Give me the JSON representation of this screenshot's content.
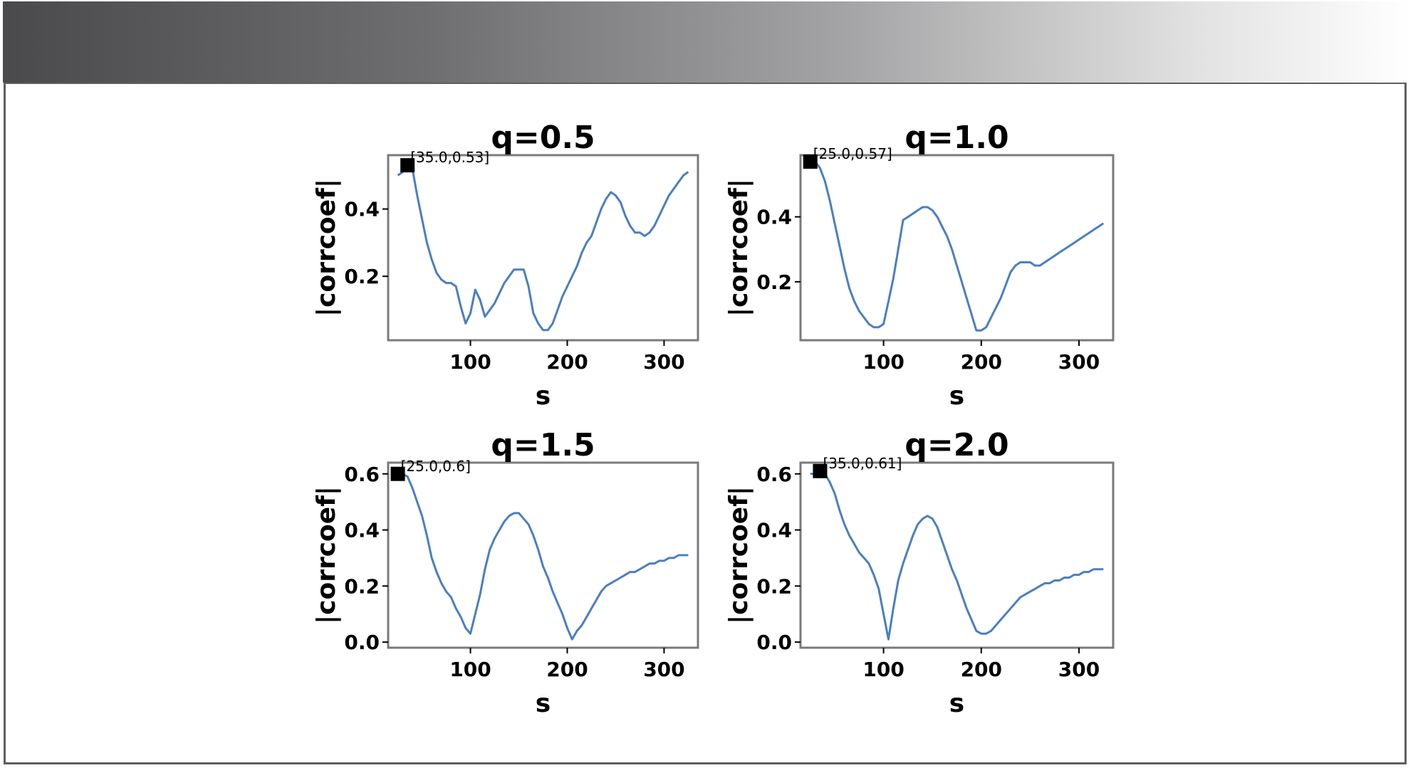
{
  "chart_data": [
    {
      "type": "line",
      "title": "q=0.5",
      "xlabel": "s",
      "ylabel": "|corrcoef|",
      "xlim": [
        15,
        335
      ],
      "ylim": [
        0.01,
        0.56
      ],
      "xticks": [
        100,
        200,
        300
      ],
      "yticks": [
        0.2,
        0.4
      ],
      "ytick_labels": [
        "0.2",
        "0.4"
      ],
      "marker": {
        "x": 35.0,
        "y": 0.53,
        "label": "[35.0,0.53]"
      },
      "series": [
        {
          "color": "#4a7fc1",
          "x": [
            25,
            30,
            35,
            40,
            45,
            50,
            55,
            60,
            65,
            70,
            75,
            80,
            85,
            90,
            95,
            100,
            105,
            110,
            115,
            120,
            125,
            130,
            135,
            140,
            145,
            150,
            155,
            160,
            165,
            170,
            175,
            180,
            185,
            190,
            195,
            200,
            205,
            210,
            215,
            220,
            225,
            230,
            235,
            240,
            245,
            250,
            255,
            260,
            265,
            270,
            275,
            280,
            285,
            290,
            295,
            300,
            305,
            310,
            315,
            320,
            325
          ],
          "values": [
            0.5,
            0.51,
            0.53,
            0.52,
            0.44,
            0.37,
            0.3,
            0.25,
            0.21,
            0.19,
            0.18,
            0.18,
            0.17,
            0.11,
            0.06,
            0.09,
            0.16,
            0.13,
            0.08,
            0.1,
            0.12,
            0.15,
            0.18,
            0.2,
            0.22,
            0.22,
            0.22,
            0.17,
            0.09,
            0.06,
            0.04,
            0.04,
            0.06,
            0.1,
            0.14,
            0.17,
            0.2,
            0.23,
            0.27,
            0.3,
            0.32,
            0.36,
            0.4,
            0.43,
            0.45,
            0.44,
            0.42,
            0.38,
            0.35,
            0.33,
            0.33,
            0.32,
            0.33,
            0.35,
            0.38,
            0.41,
            0.44,
            0.46,
            0.48,
            0.5,
            0.51
          ]
        }
      ]
    },
    {
      "type": "line",
      "title": "q=1.0",
      "xlabel": "s",
      "ylabel": "|corrcoef|",
      "xlim": [
        15,
        335
      ],
      "ylim": [
        0.02,
        0.59
      ],
      "xticks": [
        100,
        200,
        300
      ],
      "yticks": [
        0.2,
        0.4
      ],
      "ytick_labels": [
        "0.2",
        "0.4"
      ],
      "marker": {
        "x": 25.0,
        "y": 0.57,
        "label": "[25.0,0.57]"
      },
      "series": [
        {
          "color": "#4a7fc1",
          "x": [
            25,
            30,
            35,
            40,
            45,
            50,
            55,
            60,
            65,
            70,
            75,
            80,
            85,
            90,
            95,
            100,
            105,
            110,
            115,
            120,
            125,
            130,
            135,
            140,
            145,
            150,
            155,
            160,
            165,
            170,
            175,
            180,
            185,
            190,
            195,
            200,
            205,
            210,
            215,
            220,
            225,
            230,
            235,
            240,
            245,
            250,
            255,
            260,
            265,
            270,
            275,
            280,
            285,
            290,
            295,
            300,
            305,
            310,
            315,
            320,
            325
          ],
          "values": [
            0.57,
            0.57,
            0.55,
            0.51,
            0.45,
            0.38,
            0.31,
            0.24,
            0.18,
            0.14,
            0.11,
            0.09,
            0.07,
            0.06,
            0.06,
            0.07,
            0.14,
            0.21,
            0.3,
            0.39,
            0.4,
            0.41,
            0.42,
            0.43,
            0.43,
            0.42,
            0.4,
            0.37,
            0.34,
            0.3,
            0.25,
            0.2,
            0.15,
            0.1,
            0.05,
            0.05,
            0.06,
            0.09,
            0.12,
            0.15,
            0.19,
            0.23,
            0.25,
            0.26,
            0.26,
            0.26,
            0.25,
            0.25,
            0.26,
            0.27,
            0.28,
            0.29,
            0.3,
            0.31,
            0.32,
            0.33,
            0.34,
            0.35,
            0.36,
            0.37,
            0.38
          ]
        }
      ]
    },
    {
      "type": "line",
      "title": "q=1.5",
      "xlabel": "s",
      "ylabel": "|corrcoef|",
      "xlim": [
        15,
        335
      ],
      "ylim": [
        -0.02,
        0.64
      ],
      "xticks": [
        100,
        200,
        300
      ],
      "yticks": [
        0.0,
        0.2,
        0.4,
        0.6
      ],
      "ytick_labels": [
        "0.0",
        "0.2",
        "0.4",
        "0.6"
      ],
      "marker": {
        "x": 25.0,
        "y": 0.6,
        "label": "[25.0,0.6]"
      },
      "series": [
        {
          "color": "#4a7fc1",
          "x": [
            25,
            30,
            35,
            40,
            45,
            50,
            55,
            60,
            65,
            70,
            75,
            80,
            85,
            90,
            95,
            100,
            105,
            110,
            115,
            120,
            125,
            130,
            135,
            140,
            145,
            150,
            155,
            160,
            165,
            170,
            175,
            180,
            185,
            190,
            195,
            200,
            205,
            210,
            215,
            220,
            225,
            230,
            235,
            240,
            245,
            250,
            255,
            260,
            265,
            270,
            275,
            280,
            285,
            290,
            295,
            300,
            305,
            310,
            315,
            320,
            325
          ],
          "values": [
            0.6,
            0.6,
            0.59,
            0.55,
            0.5,
            0.45,
            0.38,
            0.3,
            0.25,
            0.21,
            0.18,
            0.16,
            0.12,
            0.09,
            0.05,
            0.03,
            0.1,
            0.17,
            0.26,
            0.33,
            0.37,
            0.4,
            0.43,
            0.45,
            0.46,
            0.46,
            0.44,
            0.42,
            0.38,
            0.33,
            0.27,
            0.23,
            0.18,
            0.14,
            0.1,
            0.05,
            0.01,
            0.04,
            0.06,
            0.09,
            0.12,
            0.15,
            0.18,
            0.2,
            0.21,
            0.22,
            0.23,
            0.24,
            0.25,
            0.25,
            0.26,
            0.27,
            0.28,
            0.28,
            0.29,
            0.29,
            0.3,
            0.3,
            0.31,
            0.31,
            0.31
          ]
        }
      ]
    },
    {
      "type": "line",
      "title": "q=2.0",
      "xlabel": "s",
      "ylabel": "|corrcoef|",
      "xlim": [
        15,
        335
      ],
      "ylim": [
        -0.02,
        0.64
      ],
      "xticks": [
        100,
        200,
        300
      ],
      "yticks": [
        0.0,
        0.2,
        0.4,
        0.6
      ],
      "ytick_labels": [
        "0.0",
        "0.2",
        "0.4",
        "0.6"
      ],
      "marker": {
        "x": 35.0,
        "y": 0.61,
        "label": "[35.0,0.61]"
      },
      "series": [
        {
          "color": "#4a7fc1",
          "x": [
            25,
            30,
            35,
            40,
            45,
            50,
            55,
            60,
            65,
            70,
            75,
            80,
            85,
            90,
            95,
            100,
            105,
            110,
            115,
            120,
            125,
            130,
            135,
            140,
            145,
            150,
            155,
            160,
            165,
            170,
            175,
            180,
            185,
            190,
            195,
            200,
            205,
            210,
            215,
            220,
            225,
            230,
            235,
            240,
            245,
            250,
            255,
            260,
            265,
            270,
            275,
            280,
            285,
            290,
            295,
            300,
            305,
            310,
            315,
            320,
            325
          ],
          "values": [
            0.6,
            0.6,
            0.61,
            0.6,
            0.57,
            0.53,
            0.47,
            0.42,
            0.38,
            0.35,
            0.32,
            0.3,
            0.28,
            0.24,
            0.19,
            0.1,
            0.01,
            0.12,
            0.22,
            0.28,
            0.33,
            0.38,
            0.42,
            0.44,
            0.45,
            0.44,
            0.41,
            0.36,
            0.31,
            0.26,
            0.22,
            0.17,
            0.12,
            0.08,
            0.04,
            0.03,
            0.03,
            0.04,
            0.06,
            0.08,
            0.1,
            0.12,
            0.14,
            0.16,
            0.17,
            0.18,
            0.19,
            0.2,
            0.21,
            0.21,
            0.22,
            0.22,
            0.23,
            0.23,
            0.24,
            0.24,
            0.25,
            0.25,
            0.26,
            0.26,
            0.26
          ]
        }
      ]
    }
  ]
}
